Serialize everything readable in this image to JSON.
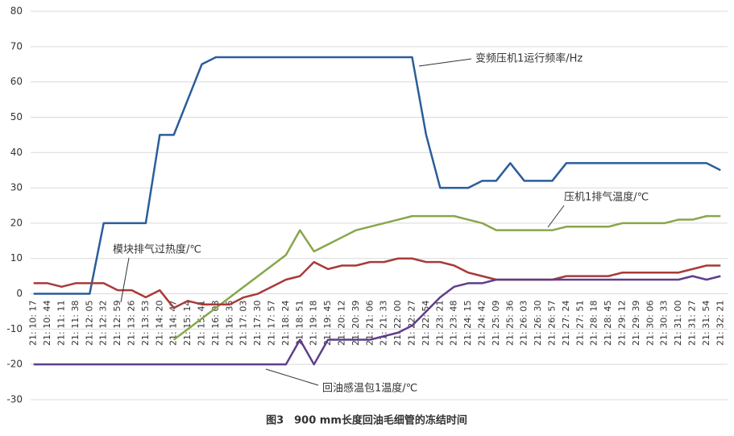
{
  "chart_data": {
    "type": "line",
    "caption": "图3　900 mm长度回油毛细管的冻结时间",
    "categories": [
      "21: 10: 17",
      "21: 10: 44",
      "21: 11: 11",
      "21: 11: 38",
      "21: 12: 05",
      "21: 12: 32",
      "21: 12: 59",
      "21: 13: 26",
      "21: 13: 53",
      "21: 14: 20",
      "21: 14: 47",
      "21: 15: 14",
      "21: 15: 41",
      "21: 16: 08",
      "21: 16: 35",
      "21: 17: 03",
      "21: 17: 30",
      "21: 17: 57",
      "21: 18: 24",
      "21: 18: 51",
      "21: 19: 18",
      "21: 19: 45",
      "21: 20: 12",
      "21: 20: 39",
      "21: 21: 06",
      "21: 21: 33",
      "21: 22: 00",
      "21: 22: 27",
      "21: 22: 54",
      "21: 23: 21",
      "21: 23: 48",
      "21: 24: 15",
      "21: 24: 42",
      "21: 25: 09",
      "21: 25: 36",
      "21: 26: 03",
      "21: 26: 30",
      "21: 26: 57",
      "21: 27: 24",
      "21: 27: 51",
      "21: 28: 18",
      "21: 28: 45",
      "21: 29: 12",
      "21: 29: 39",
      "21: 30: 06",
      "21: 30: 33",
      "21: 31: 00",
      "21: 31: 27",
      "21: 31: 54",
      "21: 32: 21"
    ],
    "series": [
      {
        "name": "变频压机1运行频率/Hz",
        "color": "#2b5d9a",
        "values": [
          0,
          0,
          0,
          0,
          0,
          20,
          20,
          20,
          20,
          45,
          45,
          55,
          65,
          67,
          67,
          67,
          67,
          67,
          67,
          67,
          67,
          67,
          67,
          67,
          67,
          67,
          67,
          67,
          45,
          30,
          30,
          30,
          32,
          32,
          37,
          32,
          32,
          32,
          37,
          37,
          37,
          37,
          37,
          37,
          37,
          37,
          37,
          37,
          37,
          35
        ]
      },
      {
        "name": "压机1排气温度/℃",
        "color": "#86a74b",
        "values": [
          null,
          null,
          null,
          null,
          null,
          null,
          null,
          null,
          null,
          null,
          -13,
          -10,
          -7,
          -4,
          -1,
          2,
          5,
          8,
          11,
          18,
          12,
          14,
          16,
          18,
          19,
          20,
          21,
          22,
          22,
          22,
          22,
          21,
          20,
          18,
          18,
          18,
          18,
          18,
          19,
          19,
          19,
          19,
          20,
          20,
          20,
          20,
          21,
          21,
          22,
          22
        ]
      },
      {
        "name": "模块排气过热度/℃",
        "color": "#a83a3a",
        "values": [
          3,
          3,
          2,
          3,
          3,
          3,
          1,
          1,
          -1,
          1,
          -4,
          -2,
          -3,
          -3,
          -3,
          -1,
          0,
          2,
          4,
          5,
          9,
          7,
          8,
          8,
          9,
          9,
          10,
          10,
          9,
          9,
          8,
          6,
          5,
          4,
          4,
          4,
          4,
          4,
          5,
          5,
          5,
          5,
          6,
          6,
          6,
          6,
          6,
          7,
          8,
          8
        ]
      },
      {
        "name": "回油感温包1温度/℃",
        "color": "#5f3e8a",
        "values": [
          -20,
          -20,
          -20,
          -20,
          -20,
          -20,
          -20,
          -20,
          -20,
          -20,
          -20,
          -20,
          -20,
          -20,
          -20,
          -20,
          -20,
          -20,
          -20,
          -13,
          -20,
          -13,
          -13,
          -13,
          -13,
          -12,
          -11,
          -9,
          -5,
          -1,
          2,
          3,
          3,
          4,
          4,
          4,
          4,
          4,
          4,
          4,
          4,
          4,
          4,
          4,
          4,
          4,
          4,
          5,
          4,
          5
        ]
      }
    ],
    "ylim": [
      -30,
      80
    ],
    "yticks": [
      -30,
      -20,
      -10,
      0,
      10,
      20,
      30,
      40,
      50,
      60,
      70,
      80
    ],
    "grid": true
  }
}
